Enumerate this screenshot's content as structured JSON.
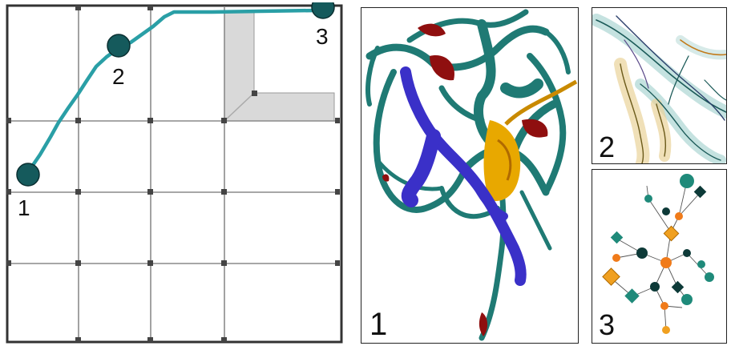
{
  "path_panel": {
    "waypoints": [
      {
        "label": "1"
      },
      {
        "label": "2"
      },
      {
        "label": "3"
      }
    ]
  },
  "panels": [
    {
      "label": "1"
    },
    {
      "label": "2"
    },
    {
      "label": "3"
    }
  ],
  "colors": {
    "teal": "#1f7a74",
    "dark_teal": "#0d4a4a",
    "path_cyan": "#2a9fa6",
    "grid_line": "#8a8a8a",
    "blue": "#3a30c8",
    "red": "#8f0f0f",
    "gold": "#e8a800",
    "orange": "#f07b1a"
  }
}
